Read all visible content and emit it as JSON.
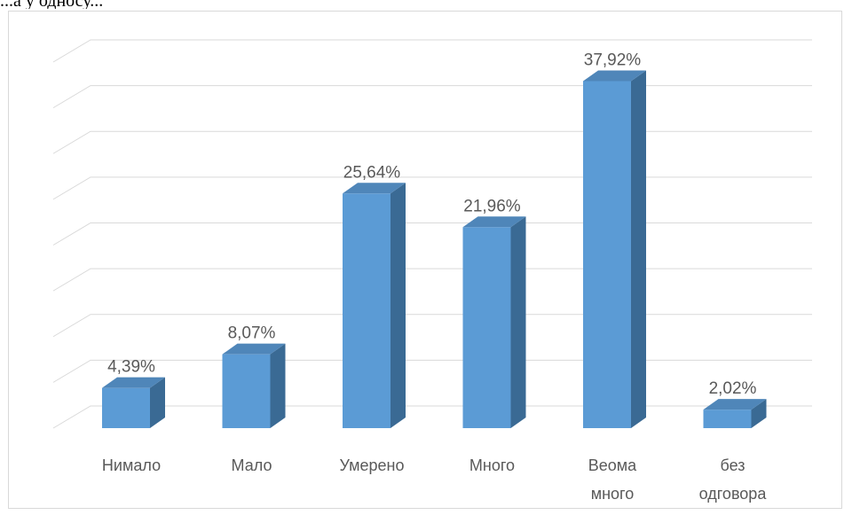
{
  "header_fragment": "...а у односу...",
  "chart_data": {
    "type": "bar",
    "style": "3d-column",
    "categories": [
      [
        "Нимало"
      ],
      [
        "Мало"
      ],
      [
        "Умерено"
      ],
      [
        "Много"
      ],
      [
        "Веома",
        "много"
      ],
      [
        "без",
        "одговора"
      ]
    ],
    "values": [
      4.39,
      8.07,
      25.64,
      21.96,
      37.92,
      2.02
    ],
    "value_labels": [
      "4,39%",
      "8,07%",
      "25,64%",
      "21,96%",
      "37,92%",
      "2,02%"
    ],
    "ylim": [
      0,
      40
    ],
    "grid": true,
    "gridline_step": 5,
    "colors": {
      "front": "#5b9bd5",
      "side": "#3a6a94",
      "top": "#4f86b9",
      "grid": "#d9d9d9",
      "text": "#595959"
    }
  }
}
